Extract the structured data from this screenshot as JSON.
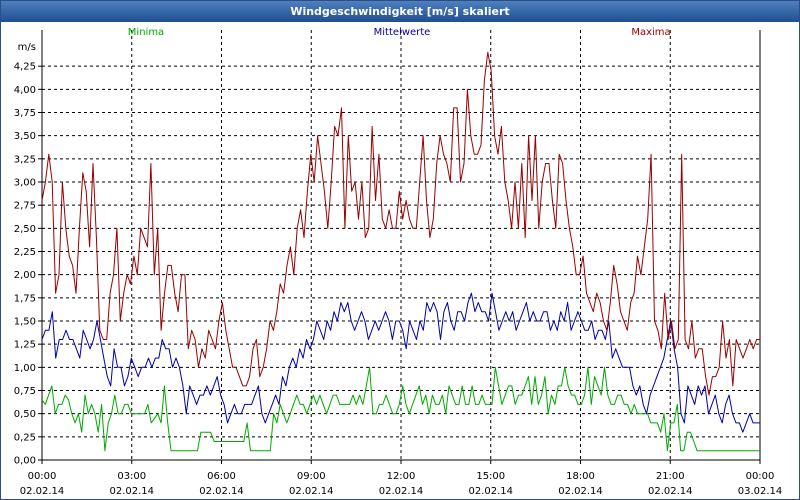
{
  "window": {
    "title": "Windgeschwindigkeit [m/s] skaliert"
  },
  "colors": {
    "minima": "#00aa00",
    "mittelwerte": "#0000aa",
    "maxima": "#990000",
    "titlebar": "#2f5f9f"
  },
  "chart_data": {
    "type": "line",
    "title": "Windgeschwindigkeit [m/s] skaliert",
    "ylabel": "m/s",
    "xlabel": "",
    "ylim": [
      0,
      4.5
    ],
    "y_ticks": [
      0,
      0.25,
      0.5,
      0.75,
      1.0,
      1.25,
      1.5,
      1.75,
      2.0,
      2.25,
      2.5,
      2.75,
      3.0,
      3.25,
      3.5,
      3.75,
      4.0,
      4.25
    ],
    "y_tick_labels": [
      "0,00",
      "0,25",
      "0,50",
      "0,75",
      "1,00",
      "1,25",
      "1,50",
      "1,75",
      "2,00",
      "2,25",
      "2,50",
      "2,75",
      "3,00",
      "3,25",
      "3,50",
      "3,75",
      "4,00",
      "4,25"
    ],
    "xlim": [
      "02.02.14 00:00",
      "03.02.14 00:00"
    ],
    "x_ticks": [
      {
        "time": "00:00",
        "date": "02.02.14"
      },
      {
        "time": "03:00",
        "date": "02.02.14"
      },
      {
        "time": "06:00",
        "date": "02.02.14"
      },
      {
        "time": "09:00",
        "date": "02.02.14"
      },
      {
        "time": "12:00",
        "date": "02.02.14"
      },
      {
        "time": "15:00",
        "date": "02.02.14"
      },
      {
        "time": "18:00",
        "date": "02.02.14"
      },
      {
        "time": "21:00",
        "date": "02.02.14"
      },
      {
        "time": "00:00",
        "date": "03.02.14"
      }
    ],
    "grid": true,
    "series": [
      {
        "name": "Minima",
        "values": [
          0.65,
          0.6,
          0.7,
          0.8,
          0.5,
          0.6,
          0.6,
          0.7,
          0.65,
          0.5,
          0.4,
          0.5,
          0.3,
          0.7,
          0.5,
          0.6,
          0.5,
          0.3,
          0.6,
          0.1,
          0.4,
          0.5,
          0.7,
          0.5,
          0.5,
          0.6,
          0.6,
          0.5,
          0.5,
          0.5,
          0.5,
          0.5,
          0.6,
          0.4,
          0.45,
          0.5,
          0.4,
          0.8,
          0.4,
          0.1,
          0.1,
          0.1,
          0.1,
          0.1,
          0.1,
          0.1,
          0.1,
          0.1,
          0.3,
          0.3,
          0.3,
          0.3,
          0.2,
          0.2,
          0.2,
          0.2,
          0.2,
          0.2,
          0.2,
          0.2,
          0.2,
          0.2,
          0.4,
          0.1,
          0.1,
          0.1,
          0.1,
          0.1,
          0.1,
          0.1,
          0.5,
          0.4,
          0.6,
          0.5,
          0.4,
          0.5,
          0.6,
          0.7,
          0.6,
          0.6,
          0.5,
          0.6,
          0.7,
          0.6,
          0.7,
          0.6,
          0.5,
          0.6,
          0.7,
          0.7,
          0.6,
          0.6,
          0.6,
          0.6,
          0.7,
          0.6,
          0.7,
          0.6,
          0.8,
          1.0,
          0.5,
          0.5,
          0.6,
          0.6,
          0.7,
          0.6,
          0.5,
          0.5,
          0.6,
          0.8,
          0.6,
          0.5,
          0.6,
          0.7,
          0.8,
          0.6,
          0.7,
          0.5,
          0.7,
          0.6,
          0.6,
          0.7,
          0.5,
          0.8,
          0.7,
          0.6,
          0.6,
          0.8,
          0.6,
          0.6,
          0.8,
          0.6,
          0.6,
          0.7,
          0.6,
          0.6,
          0.6,
          1.0,
          0.8,
          0.6,
          0.7,
          0.8,
          0.8,
          0.6,
          0.7,
          0.7,
          0.8,
          0.9,
          0.6,
          0.9,
          0.6,
          0.7,
          0.9,
          0.5,
          0.7,
          0.6,
          0.8,
          0.8,
          1.0,
          0.8,
          0.7,
          0.7,
          0.6,
          0.6,
          0.7,
          1.0,
          0.6,
          0.9,
          0.8,
          0.7,
          1.0,
          0.7,
          0.6,
          0.6,
          0.7,
          0.7,
          0.6,
          0.6,
          0.5,
          0.6,
          0.5,
          0.5,
          0.5,
          0.5,
          0.4,
          0.4,
          0.4,
          0.3,
          0.5,
          0.1,
          0.4,
          0.4,
          0.6,
          0.1,
          0.1,
          0.3,
          0.3,
          0.2,
          0.1,
          0.1,
          0.1,
          0.1,
          0.1,
          0.1,
          0.1,
          0.1,
          0.1,
          0.1,
          0.1,
          0.1,
          0.1,
          0.1,
          0.1,
          0.1,
          0.1,
          0.1,
          0.1,
          0.1
        ]
      },
      {
        "name": "Mittelwerte",
        "values": [
          1.3,
          1.4,
          1.4,
          1.6,
          1.1,
          1.3,
          1.3,
          1.4,
          1.3,
          1.3,
          1.2,
          1.1,
          1.4,
          1.3,
          1.2,
          1.3,
          1.5,
          1.3,
          1.1,
          0.9,
          0.8,
          1.2,
          1.0,
          1.0,
          0.8,
          0.9,
          1.1,
          1.0,
          0.9,
          1.0,
          1.0,
          1.1,
          1.0,
          1.1,
          1.1,
          1.3,
          1.2,
          1.2,
          1.0,
          1.1,
          1.0,
          0.8,
          0.5,
          0.8,
          0.7,
          0.6,
          0.7,
          0.7,
          0.8,
          0.7,
          0.8,
          0.9,
          0.7,
          0.6,
          0.4,
          0.5,
          0.6,
          0.5,
          0.5,
          0.6,
          0.6,
          0.6,
          0.7,
          0.8,
          0.5,
          0.4,
          0.5,
          0.6,
          0.7,
          0.6,
          0.9,
          0.8,
          1.0,
          1.1,
          1.0,
          1.2,
          1.1,
          1.3,
          1.2,
          1.3,
          1.5,
          1.4,
          1.3,
          1.5,
          1.4,
          1.6,
          1.5,
          1.7,
          1.6,
          1.7,
          1.5,
          1.4,
          1.5,
          1.6,
          1.5,
          1.3,
          1.4,
          1.5,
          1.4,
          1.5,
          1.6,
          1.5,
          1.3,
          1.5,
          1.5,
          1.4,
          1.2,
          1.5,
          1.4,
          1.3,
          1.5,
          1.4,
          1.7,
          1.6,
          1.7,
          1.6,
          1.3,
          1.6,
          1.7,
          1.5,
          1.4,
          1.6,
          1.6,
          1.5,
          1.7,
          1.8,
          1.6,
          1.7,
          1.6,
          1.6,
          1.5,
          1.8,
          1.6,
          1.4,
          1.5,
          1.6,
          1.5,
          1.6,
          1.4,
          1.5,
          1.6,
          1.7,
          1.5,
          1.6,
          1.5,
          1.5,
          1.6,
          1.6,
          1.4,
          1.5,
          1.4,
          1.6,
          1.5,
          1.7,
          1.4,
          1.5,
          1.6,
          1.5,
          1.4,
          1.4,
          1.5,
          1.3,
          1.4,
          1.4,
          1.3,
          1.5,
          1.1,
          1.2,
          1.1,
          1.0,
          1.0,
          1.0,
          0.8,
          0.7,
          0.8,
          0.6,
          0.5,
          0.7,
          0.8,
          0.9,
          1.0,
          1.1,
          1.3,
          1.5,
          1.2,
          1.0,
          0.5,
          0.4,
          0.8,
          0.7,
          0.6,
          0.8,
          0.7,
          0.8,
          0.5,
          0.6,
          0.7,
          0.5,
          0.4,
          0.6,
          0.7,
          0.5,
          0.4,
          0.4,
          0.3,
          0.4,
          0.5,
          0.4,
          0.4,
          0.4
        ]
      },
      {
        "name": "Maxima",
        "values": [
          2.8,
          3.0,
          3.3,
          3.0,
          1.8,
          2.0,
          3.0,
          2.5,
          2.2,
          2.1,
          1.8,
          2.5,
          3.1,
          2.9,
          2.3,
          3.2,
          2.4,
          1.4,
          1.3,
          1.3,
          1.8,
          2.0,
          2.5,
          1.5,
          1.8,
          2.0,
          1.9,
          2.2,
          2.0,
          2.5,
          2.4,
          2.3,
          3.2,
          2.0,
          2.5,
          1.4,
          1.8,
          2.1,
          2.1,
          1.8,
          1.6,
          2.0,
          2.0,
          1.2,
          1.4,
          1.3,
          1.0,
          1.2,
          1.1,
          1.4,
          1.3,
          1.2,
          1.5,
          1.7,
          1.4,
          1.2,
          1.0,
          1.0,
          0.9,
          0.8,
          0.8,
          0.9,
          1.2,
          1.3,
          0.9,
          1.0,
          1.2,
          1.5,
          1.4,
          1.6,
          1.9,
          1.8,
          2.1,
          2.3,
          2.0,
          2.5,
          2.7,
          2.4,
          2.9,
          3.3,
          3.0,
          3.5,
          3.2,
          2.9,
          2.5,
          3.0,
          3.6,
          3.5,
          3.8,
          2.5,
          3.5,
          2.9,
          3.0,
          2.6,
          3.0,
          2.4,
          2.5,
          3.6,
          2.8,
          3.3,
          2.6,
          2.5,
          2.7,
          2.5,
          2.5,
          2.9,
          2.6,
          2.8,
          2.6,
          2.5,
          2.5,
          3.0,
          3.5,
          2.8,
          2.4,
          2.6,
          3.2,
          3.5,
          3.3,
          3.2,
          3.0,
          3.8,
          3.8,
          3.0,
          3.2,
          4.0,
          3.5,
          3.3,
          3.3,
          3.4,
          4.1,
          4.4,
          4.2,
          3.5,
          3.3,
          3.6,
          3.0,
          2.8,
          2.5,
          3.0,
          2.5,
          3.2,
          2.4,
          3.5,
          2.8,
          3.5,
          2.5,
          3.0,
          3.2,
          3.2,
          2.8,
          2.5,
          3.3,
          3.2,
          2.8,
          2.5,
          2.3,
          2.0,
          2.0,
          2.2,
          1.8,
          1.7,
          1.6,
          1.8,
          1.7,
          1.5,
          1.4,
          1.7,
          2.1,
          1.9,
          1.6,
          1.5,
          1.4,
          1.7,
          1.8,
          2.2,
          2.0,
          2.3,
          2.6,
          3.3,
          1.5,
          1.4,
          1.2,
          1.8,
          1.3,
          1.5,
          1.2,
          1.3,
          3.3,
          1.3,
          1.2,
          1.5,
          1.1,
          1.2,
          1.2,
          0.9,
          0.7,
          0.9,
          0.9,
          1.0,
          1.5,
          1.1,
          1.3,
          0.8,
          1.3,
          1.2,
          1.1,
          1.2,
          1.3,
          1.2,
          1.3,
          1.3
        ]
      }
    ]
  }
}
